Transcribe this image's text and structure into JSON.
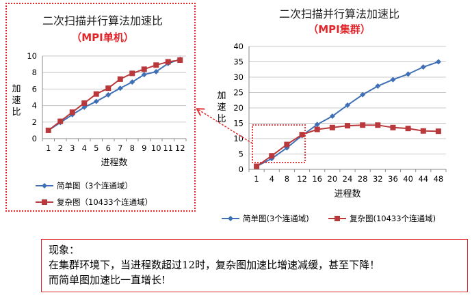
{
  "chart_data": [
    {
      "type": "line",
      "title": "二次扫描并行算法加速比",
      "subtitle": "（MPI单机）",
      "xlabel": "进程数",
      "ylabel": "加速比",
      "categories": [
        "1",
        "2",
        "3",
        "4",
        "5",
        "6",
        "7",
        "8",
        "9",
        "10",
        "11",
        "12"
      ],
      "ylim": [
        0,
        10
      ],
      "yticks": [
        0,
        2,
        4,
        6,
        8,
        10
      ],
      "grid": true,
      "legend_position": "bottom",
      "series": [
        {
          "name": "简单图（3个连通域）",
          "color": "#3f6fb5",
          "marker": "diamond",
          "values": [
            1.0,
            1.95,
            2.9,
            3.8,
            4.5,
            5.3,
            6.1,
            6.85,
            7.75,
            8.1,
            9.1,
            9.6
          ]
        },
        {
          "name": "复杂图（10433个连通域）",
          "color": "#b8383b",
          "marker": "square",
          "values": [
            1.0,
            2.1,
            3.2,
            4.3,
            5.4,
            6.1,
            7.2,
            7.9,
            8.4,
            8.9,
            9.3,
            9.5
          ]
        }
      ]
    },
    {
      "type": "line",
      "title": "二次扫描并行算法加速比",
      "subtitle": "（MPI集群）",
      "xlabel": "进程数",
      "ylabel": "加速比",
      "categories": [
        "1",
        "4",
        "8",
        "12",
        "16",
        "20",
        "24",
        "28",
        "32",
        "36",
        "40",
        "44",
        "48"
      ],
      "ylim": [
        0,
        40
      ],
      "yticks": [
        0,
        5,
        10,
        15,
        20,
        25,
        30,
        35,
        40
      ],
      "grid": true,
      "legend_position": "bottom",
      "series": [
        {
          "name": "简单图(3个连通域)",
          "color": "#3f6fb5",
          "marker": "diamond",
          "values": [
            1.0,
            3.5,
            7.0,
            11.0,
            14.6,
            17.3,
            20.9,
            24.3,
            27.1,
            29.2,
            31.0,
            33.3,
            35.0
          ]
        },
        {
          "name": "复杂图(10433个连通域)",
          "color": "#b8383b",
          "marker": "square",
          "values": [
            1.0,
            4.4,
            8.1,
            11.3,
            13.0,
            13.6,
            14.2,
            14.4,
            14.4,
            13.6,
            13.3,
            12.5,
            12.4
          ]
        }
      ]
    }
  ],
  "note": {
    "lines": [
      "现象：",
      "在集群环境下，当进程数超过12时，复杂图加速比增速减缓，甚至下降！",
      "而简单图加速比一直增长!"
    ]
  },
  "colors": {
    "highlight": "#e0262b",
    "simple_series": "#3f6fb5",
    "complex_series": "#b8383b",
    "grid": "#c8c8c8"
  }
}
